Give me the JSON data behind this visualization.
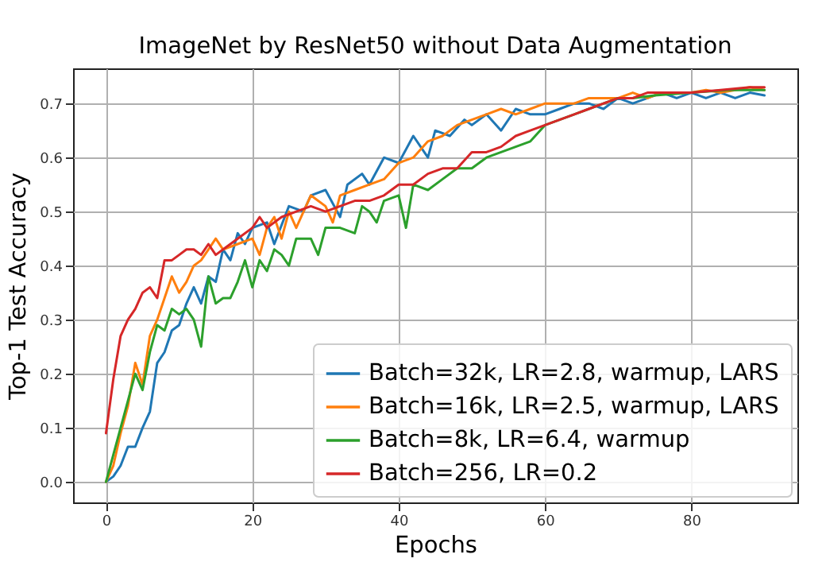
{
  "chart_data": {
    "type": "line",
    "title": "ImageNet by ResNet50 without Data Augmentation",
    "xlabel": "Epochs",
    "ylabel": "Top-1 Test Accuracy",
    "xlim": [
      -4.5,
      94.5
    ],
    "ylim": [
      -0.038,
      0.765
    ],
    "xticks": [
      0,
      20,
      40,
      60,
      80
    ],
    "yticks": [
      {
        "value": 0,
        "label": "0.0"
      },
      {
        "value": 0.1,
        "label": "0.1"
      },
      {
        "value": 0.2,
        "label": "0.2"
      },
      {
        "value": 0.3,
        "label": "0.3"
      },
      {
        "value": 0.4,
        "label": "0.4"
      },
      {
        "value": 0.5,
        "label": "0.5"
      },
      {
        "value": 0.6,
        "label": "0.6"
      },
      {
        "value": 0.7,
        "label": "0.7"
      }
    ],
    "grid": true,
    "legend": "bottom right",
    "line_style": "solid",
    "series": [
      {
        "name": "Batch=32k, LR=2.8, warmup, LARS",
        "color": "#1f77b4",
        "x": [
          0,
          1,
          2,
          3,
          4,
          5,
          6,
          7,
          8,
          9,
          10,
          11,
          12,
          13,
          14,
          15,
          16,
          17,
          18,
          19,
          20,
          22,
          23,
          25,
          27,
          28,
          30,
          32,
          33,
          35,
          36,
          38,
          40,
          42,
          44,
          45,
          47,
          49,
          50,
          52,
          54,
          56,
          58,
          60,
          62,
          64,
          66,
          68,
          70,
          72,
          74,
          76,
          78,
          80,
          82,
          84,
          86,
          88,
          90
        ],
        "values": [
          0,
          0.01,
          0.03,
          0.065,
          0.065,
          0.1,
          0.13,
          0.22,
          0.24,
          0.28,
          0.29,
          0.33,
          0.36,
          0.33,
          0.38,
          0.37,
          0.43,
          0.41,
          0.46,
          0.44,
          0.47,
          0.48,
          0.44,
          0.51,
          0.5,
          0.53,
          0.54,
          0.49,
          0.55,
          0.57,
          0.55,
          0.6,
          0.59,
          0.64,
          0.6,
          0.65,
          0.64,
          0.67,
          0.66,
          0.68,
          0.65,
          0.69,
          0.68,
          0.68,
          0.69,
          0.7,
          0.7,
          0.69,
          0.71,
          0.7,
          0.71,
          0.72,
          0.71,
          0.72,
          0.71,
          0.72,
          0.71,
          0.72,
          0.715
        ]
      },
      {
        "name": "Batch=16k, LR=2.5, warmup, LARS",
        "color": "#ff7f0e",
        "x": [
          0,
          1,
          2,
          3,
          4,
          5,
          6,
          7,
          8,
          9,
          10,
          11,
          12,
          13,
          14,
          15,
          16,
          18,
          20,
          21,
          22,
          23,
          24,
          25,
          26,
          28,
          30,
          31,
          32,
          34,
          36,
          38,
          40,
          42,
          44,
          46,
          48,
          50,
          52,
          54,
          56,
          58,
          60,
          62,
          64,
          66,
          68,
          70,
          72,
          74,
          76,
          78,
          80,
          82,
          84,
          86,
          88,
          90
        ],
        "values": [
          0,
          0.03,
          0.09,
          0.14,
          0.22,
          0.18,
          0.27,
          0.3,
          0.34,
          0.38,
          0.35,
          0.37,
          0.4,
          0.41,
          0.43,
          0.45,
          0.43,
          0.44,
          0.45,
          0.42,
          0.47,
          0.49,
          0.45,
          0.5,
          0.47,
          0.53,
          0.51,
          0.48,
          0.53,
          0.54,
          0.55,
          0.56,
          0.59,
          0.6,
          0.63,
          0.64,
          0.66,
          0.67,
          0.68,
          0.69,
          0.68,
          0.69,
          0.7,
          0.7,
          0.7,
          0.71,
          0.71,
          0.71,
          0.72,
          0.71,
          0.72,
          0.72,
          0.72,
          0.725,
          0.72,
          0.725,
          0.73,
          0.725
        ]
      },
      {
        "name": "Batch=8k, LR=6.4, warmup",
        "color": "#2ca02c",
        "x": [
          0,
          1,
          2,
          3,
          4,
          5,
          6,
          7,
          8,
          9,
          10,
          11,
          12,
          13,
          14,
          15,
          16,
          17,
          18,
          19,
          20,
          21,
          22,
          23,
          24,
          25,
          26,
          28,
          29,
          30,
          32,
          34,
          35,
          36,
          37,
          38,
          40,
          41,
          42,
          44,
          46,
          48,
          50,
          52,
          54,
          56,
          58,
          60,
          62,
          64,
          66,
          68,
          70,
          72,
          75,
          80,
          85,
          90
        ],
        "values": [
          0,
          0.05,
          0.1,
          0.15,
          0.2,
          0.17,
          0.24,
          0.29,
          0.28,
          0.32,
          0.31,
          0.32,
          0.3,
          0.25,
          0.38,
          0.33,
          0.34,
          0.34,
          0.37,
          0.41,
          0.36,
          0.41,
          0.39,
          0.43,
          0.42,
          0.4,
          0.45,
          0.45,
          0.42,
          0.47,
          0.47,
          0.46,
          0.51,
          0.5,
          0.48,
          0.52,
          0.53,
          0.47,
          0.55,
          0.54,
          0.56,
          0.58,
          0.58,
          0.6,
          0.61,
          0.62,
          0.63,
          0.66,
          0.67,
          0.68,
          0.69,
          0.7,
          0.71,
          0.71,
          0.715,
          0.72,
          0.725,
          0.725
        ]
      },
      {
        "name": "Batch=256, LR=0.2",
        "color": "#d62728",
        "x": [
          0,
          1,
          2,
          3,
          4,
          5,
          6,
          7,
          8,
          9,
          10,
          11,
          12,
          13,
          14,
          15,
          16,
          18,
          20,
          21,
          22,
          24,
          26,
          28,
          30,
          32,
          34,
          36,
          38,
          40,
          42,
          44,
          46,
          48,
          50,
          52,
          54,
          56,
          58,
          60,
          62,
          64,
          66,
          68,
          70,
          72,
          74,
          76,
          78,
          80,
          84,
          88,
          90
        ],
        "values": [
          0.09,
          0.19,
          0.27,
          0.3,
          0.32,
          0.35,
          0.36,
          0.34,
          0.41,
          0.41,
          0.42,
          0.43,
          0.43,
          0.42,
          0.44,
          0.42,
          0.43,
          0.45,
          0.47,
          0.49,
          0.47,
          0.49,
          0.5,
          0.51,
          0.5,
          0.51,
          0.52,
          0.52,
          0.53,
          0.55,
          0.55,
          0.57,
          0.58,
          0.58,
          0.61,
          0.61,
          0.62,
          0.64,
          0.65,
          0.66,
          0.67,
          0.68,
          0.69,
          0.7,
          0.71,
          0.71,
          0.72,
          0.72,
          0.72,
          0.72,
          0.725,
          0.73,
          0.73
        ]
      }
    ]
  }
}
